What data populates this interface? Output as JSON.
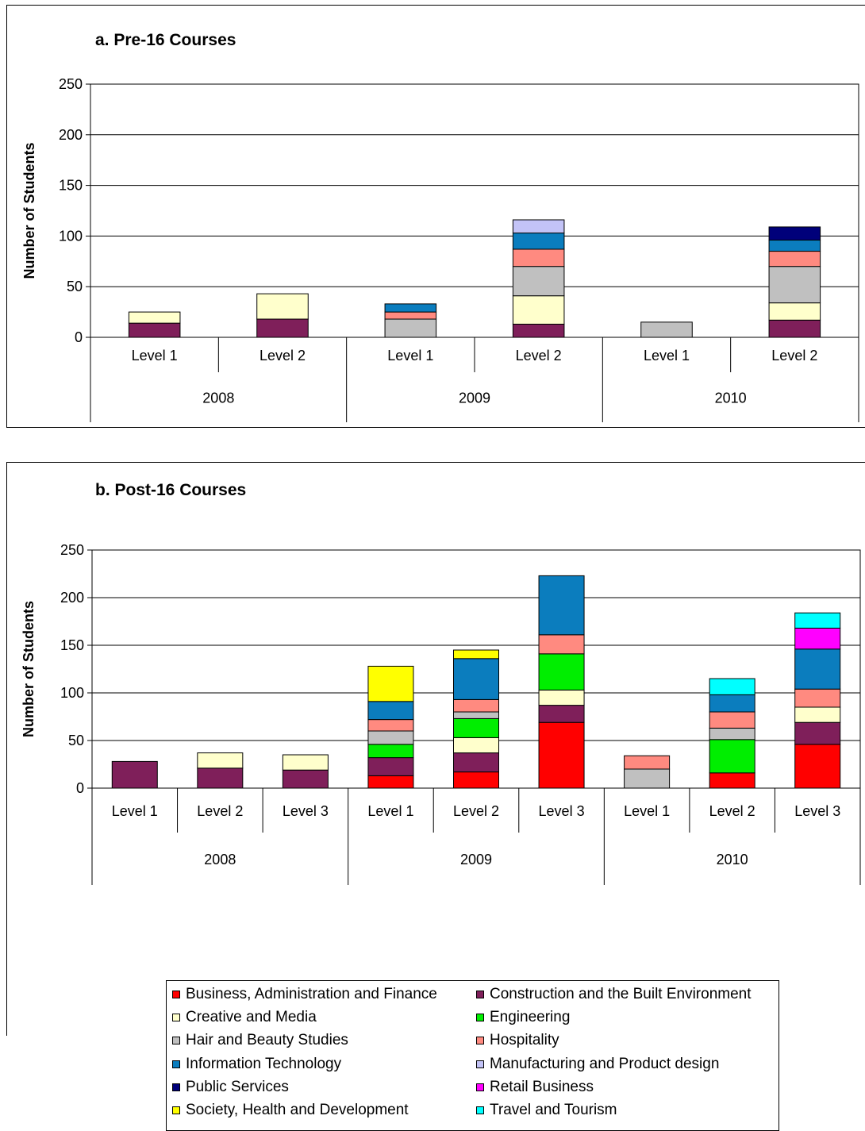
{
  "categories_colors": {
    "Business, Administration and Finance": "#ff0000",
    "Construction and the Built Environment": "#7f1f5a",
    "Creative and Media": "#ffffcc",
    "Engineering": "#00ee00",
    "Hair and Beauty Studies": "#c0c0c0",
    "Hospitality": "#ff8a80",
    "Information Technology": "#0b7dbe",
    "Manufacturing and Product design": "#c3c3f7",
    "Public Services": "#00007a",
    "Retail Business": "#ff00ff",
    "Society, Health and Development": "#ffff00",
    "Travel and Tourism": "#00ffff"
  },
  "legend": [
    "Business, Administration and Finance",
    "Construction and the Built Environment",
    "Creative and Media",
    "Engineering",
    "Hair and Beauty Studies",
    "Hospitality",
    "Information Technology",
    "Manufacturing and Product design",
    "Public Services",
    "Retail Business",
    "Society, Health and Development",
    "Travel and Tourism"
  ],
  "chart_data": [
    {
      "type": "bar",
      "stacked": true,
      "title": "a. Pre-16 Courses",
      "ylabel": "Number of Students",
      "ylim": [
        0,
        250
      ],
      "yticks": [
        0,
        50,
        100,
        150,
        200,
        250
      ],
      "grid": true,
      "groups": [
        {
          "year": "2008",
          "levels": [
            {
              "level": "Level 1",
              "stack": [
                [
                  "Construction and the Built Environment",
                  14
                ],
                [
                  "Creative and Media",
                  11
                ]
              ]
            },
            {
              "level": "Level 2",
              "stack": [
                [
                  "Construction and the Built Environment",
                  18
                ],
                [
                  "Creative and Media",
                  25
                ]
              ]
            }
          ]
        },
        {
          "year": "2009",
          "levels": [
            {
              "level": "Level 1",
              "stack": [
                [
                  "Hair and Beauty Studies",
                  18
                ],
                [
                  "Hospitality",
                  7
                ],
                [
                  "Information Technology",
                  8
                ]
              ]
            },
            {
              "level": "Level 2",
              "stack": [
                [
                  "Construction and the Built Environment",
                  13
                ],
                [
                  "Creative and Media",
                  28
                ],
                [
                  "Hair and Beauty Studies",
                  29
                ],
                [
                  "Hospitality",
                  17
                ],
                [
                  "Information Technology",
                  16
                ],
                [
                  "Manufacturing and Product design",
                  13
                ]
              ]
            }
          ]
        },
        {
          "year": "2010",
          "levels": [
            {
              "level": "Level 1",
              "stack": [
                [
                  "Hair and Beauty Studies",
                  15
                ]
              ]
            },
            {
              "level": "Level 2",
              "stack": [
                [
                  "Construction and the Built Environment",
                  17
                ],
                [
                  "Creative and Media",
                  17
                ],
                [
                  "Hair and Beauty Studies",
                  36
                ],
                [
                  "Hospitality",
                  15
                ],
                [
                  "Information Technology",
                  11
                ],
                [
                  "Public Services",
                  13
                ]
              ]
            }
          ]
        }
      ]
    },
    {
      "type": "bar",
      "stacked": true,
      "title": "b. Post-16 Courses",
      "ylabel": "Number of Students",
      "ylim": [
        0,
        250
      ],
      "yticks": [
        0,
        50,
        100,
        150,
        200,
        250
      ],
      "grid": true,
      "groups": [
        {
          "year": "2008",
          "levels": [
            {
              "level": "Level 1",
              "stack": [
                [
                  "Construction and the Built Environment",
                  28
                ]
              ]
            },
            {
              "level": "Level 2",
              "stack": [
                [
                  "Construction and the Built Environment",
                  21
                ],
                [
                  "Creative and Media",
                  16
                ]
              ]
            },
            {
              "level": "Level 3",
              "stack": [
                [
                  "Construction and the Built Environment",
                  19
                ],
                [
                  "Creative and Media",
                  16
                ]
              ]
            }
          ]
        },
        {
          "year": "2009",
          "levels": [
            {
              "level": "Level 1",
              "stack": [
                [
                  "Business, Administration and Finance",
                  13
                ],
                [
                  "Construction and the Built Environment",
                  19
                ],
                [
                  "Engineering",
                  14
                ],
                [
                  "Hair and Beauty Studies",
                  14
                ],
                [
                  "Hospitality",
                  12
                ],
                [
                  "Information Technology",
                  19
                ],
                [
                  "Society, Health and Development",
                  37
                ]
              ]
            },
            {
              "level": "Level 2",
              "stack": [
                [
                  "Business, Administration and Finance",
                  17
                ],
                [
                  "Construction and the Built Environment",
                  20
                ],
                [
                  "Creative and Media",
                  16
                ],
                [
                  "Engineering",
                  20
                ],
                [
                  "Hair and Beauty Studies",
                  7
                ],
                [
                  "Hospitality",
                  13
                ],
                [
                  "Information Technology",
                  43
                ],
                [
                  "Society, Health and Development",
                  9
                ]
              ]
            },
            {
              "level": "Level 3",
              "stack": [
                [
                  "Business, Administration and Finance",
                  69
                ],
                [
                  "Construction and the Built Environment",
                  18
                ],
                [
                  "Creative and Media",
                  16
                ],
                [
                  "Engineering",
                  38
                ],
                [
                  "Hospitality",
                  20
                ],
                [
                  "Information Technology",
                  62
                ]
              ]
            }
          ]
        },
        {
          "year": "2010",
          "levels": [
            {
              "level": "Level 1",
              "stack": [
                [
                  "Hair and Beauty Studies",
                  20
                ],
                [
                  "Hospitality",
                  14
                ]
              ]
            },
            {
              "level": "Level 2",
              "stack": [
                [
                  "Business, Administration and Finance",
                  16
                ],
                [
                  "Engineering",
                  35
                ],
                [
                  "Hair and Beauty Studies",
                  12
                ],
                [
                  "Hospitality",
                  17
                ],
                [
                  "Information Technology",
                  18
                ],
                [
                  "Travel and Tourism",
                  17
                ]
              ]
            },
            {
              "level": "Level 3",
              "stack": [
                [
                  "Business, Administration and Finance",
                  46
                ],
                [
                  "Construction and the Built Environment",
                  23
                ],
                [
                  "Creative and Media",
                  16
                ],
                [
                  "Hospitality",
                  19
                ],
                [
                  "Information Technology",
                  42
                ],
                [
                  "Retail Business",
                  22
                ],
                [
                  "Travel and Tourism",
                  16
                ]
              ]
            }
          ]
        }
      ]
    }
  ]
}
